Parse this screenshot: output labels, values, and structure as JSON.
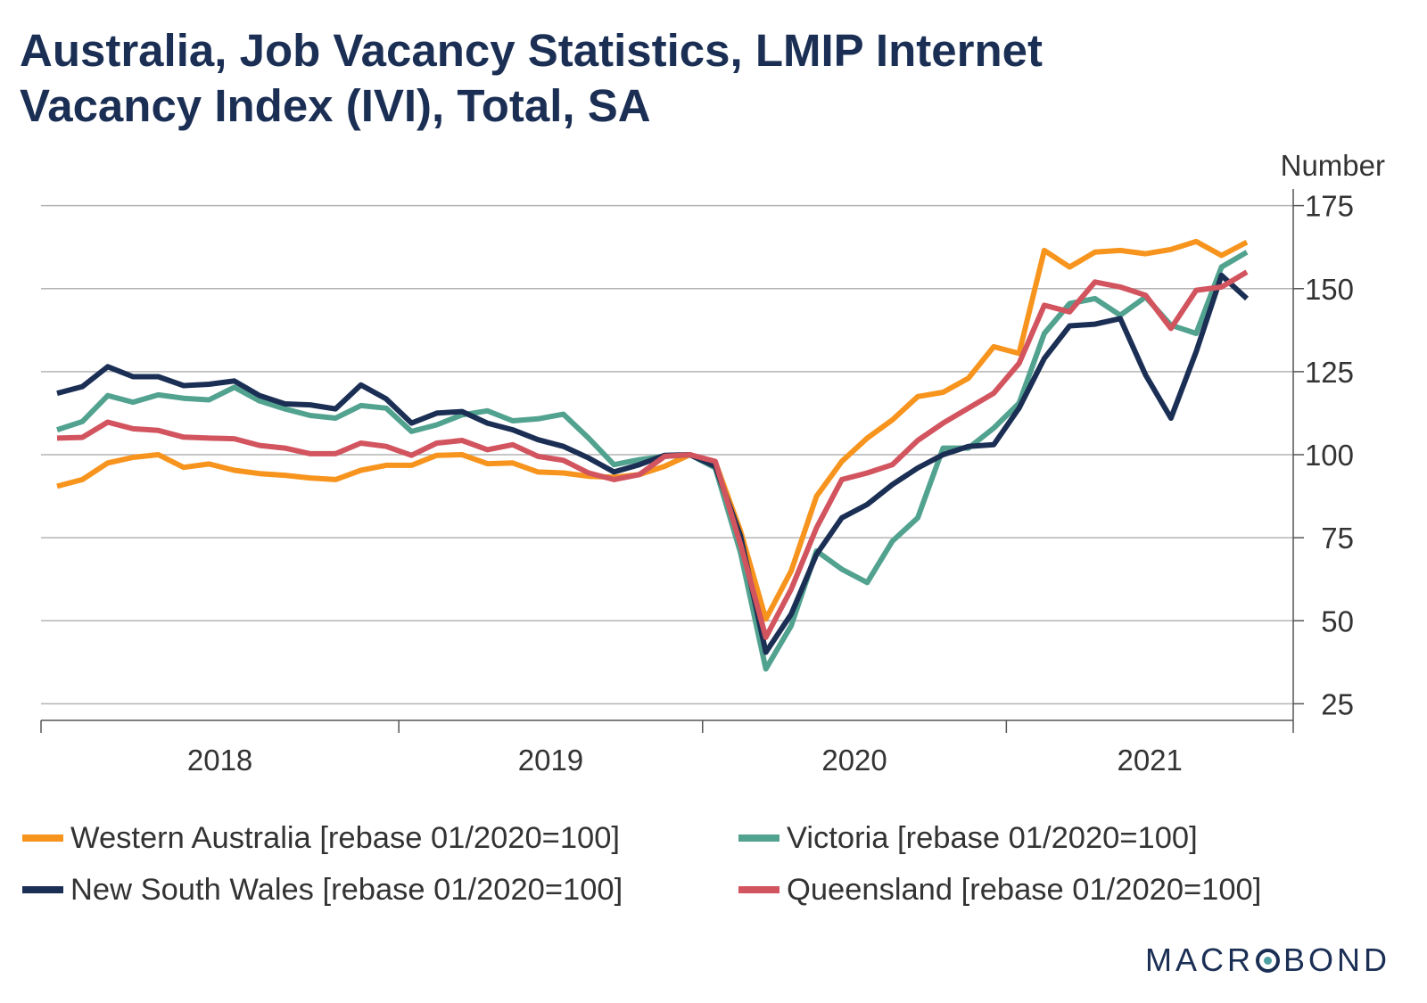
{
  "title_lines": [
    "Australia, Job Vacancy Statistics, LMIP Internet",
    "Vacancy Index (IVI), Total, SA"
  ],
  "logo": {
    "before": "MACR",
    "after": "BOND",
    "full": "MACROBOND"
  },
  "chart_data": {
    "type": "line",
    "title": "Australia, Job Vacancy Statistics, LMIP Internet Vacancy Index (IVI), Total, SA",
    "ylabel": "Number",
    "xlabel": "",
    "ylim": [
      20,
      180
    ],
    "yticks": [
      25,
      50,
      75,
      100,
      125,
      150,
      175
    ],
    "grid": true,
    "legend_position": "bottom",
    "x_start": "2017-11",
    "year_labels": [
      "2018",
      "2019",
      "2020",
      "2021"
    ],
    "series": [
      {
        "name": "Western Australia [rebase 01/2020=100]",
        "color": "#f7941d",
        "values": [
          90.5,
          92.5,
          97.5,
          99.2,
          100.0,
          96.2,
          97.2,
          95.3,
          94.3,
          93.8,
          93.0,
          92.5,
          95.3,
          96.8,
          96.8,
          99.8,
          100.0,
          97.3,
          97.5,
          94.8,
          94.5,
          93.5,
          93.2,
          94.0,
          96.5,
          100.0,
          97.8,
          77.0,
          50.5,
          65.0,
          87.5,
          98.0,
          105.0,
          110.5,
          117.5,
          118.8,
          123.0,
          132.5,
          130.5,
          161.5,
          156.5,
          161.0,
          161.5,
          160.5,
          161.8,
          164.2,
          160.0,
          164.0
        ]
      },
      {
        "name": "Victoria [rebase 01/2020=100]",
        "color": "#52a290",
        "values": [
          107.5,
          110.0,
          117.8,
          115.8,
          118.0,
          117.0,
          116.5,
          120.3,
          116.2,
          113.8,
          111.8,
          111.0,
          114.8,
          114.0,
          107.0,
          109.0,
          112.0,
          113.2,
          110.2,
          110.8,
          112.2,
          105.0,
          97.0,
          98.5,
          99.5,
          100.0,
          96.0,
          70.5,
          35.5,
          48.5,
          71.0,
          65.5,
          61.5,
          74.0,
          81.0,
          102.0,
          102.0,
          108.0,
          115.5,
          136.5,
          145.5,
          147.0,
          142.0,
          147.5,
          139.0,
          136.5,
          156.5,
          161.0
        ]
      },
      {
        "name": "New South Wales [rebase 01/2020=100]",
        "color": "#1b2f55",
        "values": [
          118.5,
          120.5,
          126.5,
          123.5,
          123.5,
          120.8,
          121.2,
          122.2,
          117.8,
          115.3,
          115.0,
          113.8,
          121.0,
          116.8,
          109.5,
          112.5,
          113.0,
          109.5,
          107.5,
          104.5,
          102.5,
          99.0,
          94.8,
          97.0,
          99.8,
          100.0,
          96.5,
          75.5,
          40.5,
          52.0,
          70.0,
          81.0,
          85.0,
          91.0,
          96.0,
          100.0,
          102.5,
          103.0,
          114.0,
          129.0,
          138.8,
          139.3,
          141.0,
          124.0,
          111.0,
          131.0,
          154.0,
          147.0
        ]
      },
      {
        "name": "Queensland [rebase 01/2020=100]",
        "color": "#d2545e",
        "values": [
          105.0,
          105.2,
          109.8,
          107.8,
          107.3,
          105.3,
          105.0,
          104.8,
          102.8,
          102.0,
          100.3,
          100.3,
          103.5,
          102.5,
          99.8,
          103.5,
          104.3,
          101.5,
          103.0,
          99.5,
          98.3,
          94.5,
          92.5,
          94.0,
          99.5,
          100.0,
          98.0,
          73.0,
          45.0,
          59.5,
          78.0,
          92.5,
          94.5,
          97.0,
          104.3,
          109.5,
          114.0,
          118.5,
          127.5,
          145.0,
          143.0,
          152.0,
          150.5,
          148.0,
          138.0,
          149.5,
          150.5,
          155.0
        ]
      }
    ]
  }
}
